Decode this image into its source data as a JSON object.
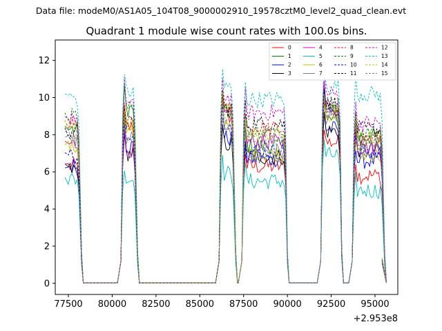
{
  "figure": {
    "suptitle": "Data file: modeM0/AS1A05_104T08_9000002910_19578cztM0_level2_quad_clean.evt",
    "title": "Quadrant 1 module wise count rates with 100.0s bins."
  },
  "chart_data": {
    "type": "line",
    "title": "Quadrant 1 module wise count rates with 100.0s bins.",
    "xlabel": "",
    "ylabel": "",
    "x_offset_label": "+2.953e8",
    "xlim": [
      76750,
      96300
    ],
    "ylim": [
      -0.6,
      13.1
    ],
    "xticks": [
      77500,
      80000,
      82500,
      85000,
      87500,
      90000,
      92500,
      95000
    ],
    "xtick_labels": [
      "77500",
      "80000",
      "82500",
      "85000",
      "87500",
      "90000",
      "92500",
      "95000"
    ],
    "yticks": [
      0,
      2,
      4,
      6,
      8,
      10,
      12
    ],
    "ytick_labels": [
      "0",
      "2",
      "4",
      "6",
      "8",
      "10",
      "12"
    ],
    "grid": false,
    "legend_position": "top-right",
    "bin_seconds": 100,
    "segments": [
      [
        77500,
        78100
      ],
      [
        80700,
        81300
      ],
      [
        86300,
        86900
      ],
      [
        87600,
        89850
      ],
      [
        92100,
        92950
      ],
      [
        93900,
        95400
      ]
    ],
    "segment_gap": 950,
    "series": [
      {
        "name": "0",
        "color": "#ff0000",
        "dashed": false,
        "base": [
          6.3,
          8.4,
          9.0,
          6.3,
          7.6,
          5.8
        ]
      },
      {
        "name": "1",
        "color": "#008000",
        "dashed": false,
        "base": [
          8.3,
          9.4,
          9.2,
          7.4,
          8.8,
          7.9
        ]
      },
      {
        "name": "2",
        "color": "#0000ff",
        "dashed": false,
        "base": [
          6.3,
          7.4,
          7.8,
          6.7,
          8.3,
          6.6
        ]
      },
      {
        "name": "3",
        "color": "#000000",
        "dashed": false,
        "base": [
          6.1,
          7.0,
          7.5,
          6.8,
          8.2,
          7.2
        ]
      },
      {
        "name": "4",
        "color": "#cc00cc",
        "dashed": false,
        "base": [
          7.5,
          7.2,
          9.0,
          7.6,
          9.6,
          7.3
        ]
      },
      {
        "name": "5",
        "color": "#00bfbf",
        "dashed": false,
        "base": [
          5.6,
          5.6,
          5.9,
          5.5,
          6.9,
          5.0
        ]
      },
      {
        "name": "6",
        "color": "#bfbf00",
        "dashed": false,
        "base": [
          7.3,
          8.1,
          8.7,
          7.0,
          9.3,
          6.9
        ]
      },
      {
        "name": "7",
        "color": "#808080",
        "dashed": false,
        "base": [
          7.7,
          7.8,
          8.1,
          7.1,
          9.0,
          7.5
        ]
      },
      {
        "name": "8",
        "color": "#ff0000",
        "dashed": true,
        "base": [
          8.6,
          8.5,
          9.3,
          8.3,
          9.0,
          7.8
        ]
      },
      {
        "name": "9",
        "color": "#008000",
        "dashed": true,
        "base": [
          9.0,
          9.4,
          9.5,
          8.2,
          9.6,
          8.1
        ]
      },
      {
        "name": "10",
        "color": "#0000ff",
        "dashed": true,
        "base": [
          6.9,
          7.6,
          8.6,
          7.1,
          9.3,
          7.0
        ]
      },
      {
        "name": "11",
        "color": "#000000",
        "dashed": true,
        "base": [
          8.2,
          8.6,
          9.4,
          8.6,
          9.7,
          8.3
        ]
      },
      {
        "name": "12",
        "color": "#cc00cc",
        "dashed": true,
        "base": [
          8.8,
          9.8,
          10.0,
          9.2,
          10.2,
          8.6
        ]
      },
      {
        "name": "13",
        "color": "#00bfbf",
        "dashed": true,
        "base": [
          10.0,
          10.3,
          10.5,
          9.9,
          10.6,
          10.2
        ]
      },
      {
        "name": "14",
        "color": "#bfbf00",
        "dashed": true,
        "base": [
          8.6,
          8.4,
          9.4,
          8.0,
          9.0,
          7.8
        ]
      },
      {
        "name": "15",
        "color": "#808080",
        "dashed": true,
        "base": [
          8.0,
          8.1,
          9.0,
          7.8,
          9.3,
          7.6
        ]
      }
    ]
  }
}
